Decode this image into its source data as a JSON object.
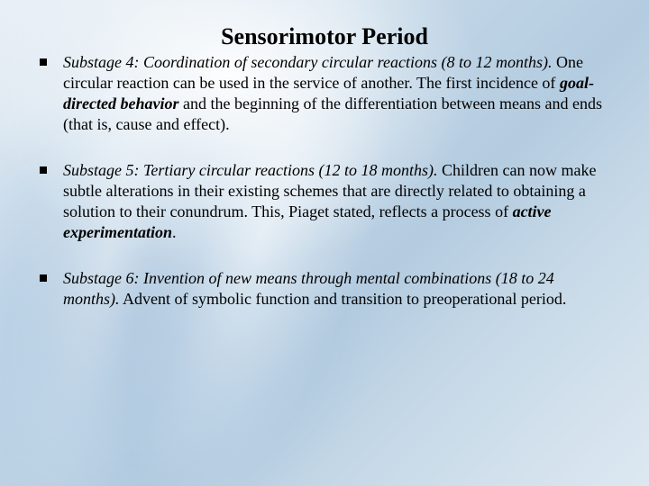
{
  "slide": {
    "title": "Sensorimotor Period",
    "title_fontsize": 26,
    "body_fontsize": 18,
    "text_color": "#000000",
    "background_colors": [
      "#e8eff5",
      "#d4e2ee",
      "#c0d5e6",
      "#b4cce0",
      "#c8dae8",
      "#dde8f1"
    ],
    "bullets": [
      {
        "lead_italic": "Substage 4: Coordination of secondary circular reactions (8 to 12 months).",
        "rest_before_bold": " One circular reaction can be used in the service of another. The first incidence of ",
        "bold_italic": "goal-directed behavior",
        "rest_after_bold": " and the beginning of the differentiation between means and ends (that is, cause and effect)."
      },
      {
        "lead_italic": "Substage 5: Tertiary circular reactions (12 to 18 months).",
        "rest_before_bold": " Children can now make subtle alterations in their existing schemes that are directly related to obtaining a solution to their conundrum. This, Piaget stated, reflects a process of ",
        "bold_italic": "active experimentation",
        "rest_after_bold": "."
      },
      {
        "lead_italic": "Substage 6: Invention of new means through mental combinations (18 to 24 months).",
        "rest_before_bold": " Advent of symbolic function and transition to preoperational period.",
        "bold_italic": "",
        "rest_after_bold": ""
      }
    ]
  }
}
